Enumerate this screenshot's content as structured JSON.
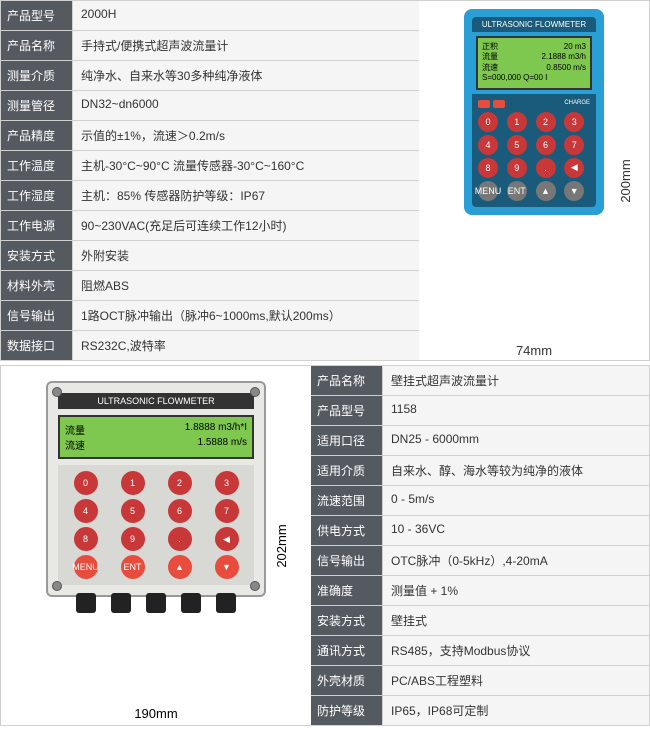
{
  "top_specs": [
    {
      "label": "产品型号",
      "value": "2000H"
    },
    {
      "label": "产品名称",
      "value": "手持式/便携式超声波流量计"
    },
    {
      "label": "测量介质",
      "value": "纯净水、自来水等30多种纯净液体"
    },
    {
      "label": "测量管径",
      "value": "DN32~dn6000"
    },
    {
      "label": "产品精度",
      "value": "示值的±1%，流速＞0.2m/s"
    },
    {
      "label": "工作温度",
      "value": "主机-30°C~90°C   流量传感器-30°C~160°C"
    },
    {
      "label": "工作湿度",
      "value": "主机：85%  传感器防护等级：IP67"
    },
    {
      "label": "工作电源",
      "value": "90~230VAC(充足后可连续工作12小时)"
    },
    {
      "label": "安装方式",
      "value": "外附安装"
    },
    {
      "label": "材料外壳",
      "value": "阻燃ABS"
    },
    {
      "label": "信号输出",
      "value": "1路OCT脉冲输出（脉冲6~1000ms,默认200ms）"
    },
    {
      "label": "数据接口",
      "value": "RS232C,波特率"
    }
  ],
  "bottom_specs": [
    {
      "label": "产品名称",
      "value": "壁挂式超声波流量计"
    },
    {
      "label": "产品型号",
      "value": "1158"
    },
    {
      "label": "适用口径",
      "value": "DN25 - 6000mm"
    },
    {
      "label": "适用介质",
      "value": "自来水、醇、海水等较为纯净的液体"
    },
    {
      "label": "流速范围",
      "value": "0 - 5m/s"
    },
    {
      "label": "供电方式",
      "value": "10 - 36VC"
    },
    {
      "label": "信号输出",
      "value": "OTC脉冲（0-5kHz）,4-20mA"
    },
    {
      "label": "准确度",
      "value": "测量值 + 1%"
    },
    {
      "label": "安装方式",
      "value": "壁挂式"
    },
    {
      "label": "通讯方式",
      "value": "RS485，支持Modbus协议"
    },
    {
      "label": "外壳材质",
      "value": "PC/ABS工程塑料"
    },
    {
      "label": "防护等级",
      "value": "IP65，IP68可定制"
    }
  ],
  "handheld": {
    "title": "ULTRASONIC FLOWMETER",
    "lcd": {
      "r1_l": "正积",
      "r1_r": "20 m3",
      "r2_l": "流量",
      "r2_r": "2.1888 m3/h",
      "r3_l": "流速",
      "r3_r": "0.8500 m/s",
      "r4": "S=000,000 Q=00 I"
    },
    "charge": "CHARGE",
    "dim_h": "200mm",
    "dim_w": "74mm",
    "keys": [
      "0",
      "1",
      "2",
      "3",
      "4",
      "5",
      "6",
      "7",
      "8",
      "9",
      ".",
      "◀",
      "MENU",
      "ENT",
      "▲",
      "▼"
    ]
  },
  "wall": {
    "title": "ULTRASONIC FLOWMETER",
    "lcd": {
      "r1_l": "流量",
      "r1_r": "1.8888 m3/h*I",
      "r2_l": "流速",
      "r2_r": "1.5888 m/s"
    },
    "dim_h": "202mm",
    "dim_w": "190mm",
    "keys": [
      "0",
      "1",
      "2",
      "3",
      "4",
      "5",
      "6",
      "7",
      "8",
      "9",
      ".",
      "◀",
      "MENU",
      "ENT",
      "▲",
      "▼"
    ]
  }
}
